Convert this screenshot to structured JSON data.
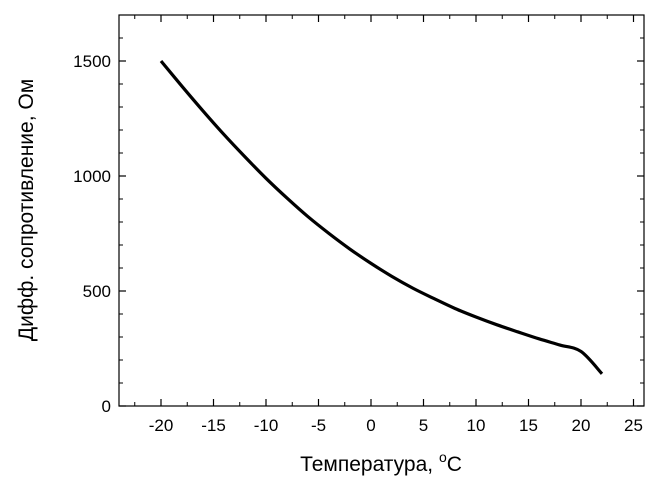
{
  "chart_data": {
    "type": "line",
    "xlabel": "Температура, ",
    "xlabel_sup": "o",
    "xlabel_unit": "C",
    "ylabel": "Дифф. сопротивление, Ом",
    "xlim": [
      -24,
      26
    ],
    "ylim": [
      0,
      1700
    ],
    "xticks": [
      -20,
      -15,
      -10,
      -5,
      0,
      5,
      10,
      15,
      20,
      25
    ],
    "yticks": [
      0,
      500,
      1000,
      1500
    ],
    "x_minor_step": 2.5,
    "y_minor_step": 100,
    "grid": false,
    "series": [
      {
        "color": "#000000",
        "x": [
          -20,
          -18,
          -16,
          -14,
          -12,
          -10,
          -8,
          -6,
          -4,
          -2,
          0,
          2,
          4,
          6,
          8,
          10,
          12,
          14,
          16,
          18,
          20,
          22
        ],
        "y": [
          1500,
          1390,
          1283,
          1180,
          1083,
          990,
          904,
          823,
          750,
          682,
          620,
          563,
          512,
          467,
          424,
          387,
          353,
          322,
          292,
          265,
          237,
          140
        ]
      }
    ]
  }
}
